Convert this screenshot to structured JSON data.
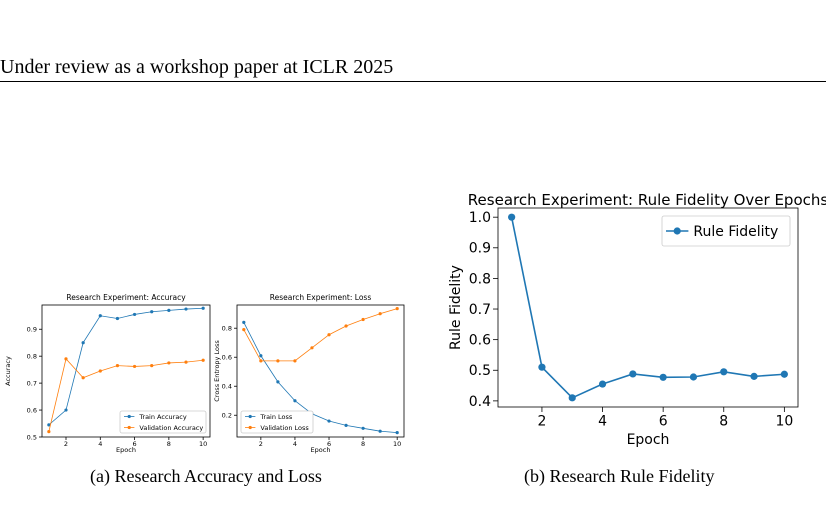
{
  "header": {
    "text": "Under review as a workshop paper at ICLR 2025"
  },
  "captions": {
    "a": "(a) Research Accuracy and Loss",
    "b": "(b) Research Rule Fidelity"
  },
  "colors": {
    "blue": "#1f77b4",
    "orange": "#ff7f0e"
  },
  "chart_data": [
    {
      "type": "line",
      "title": "Research Experiment: Accuracy",
      "xlabel": "Epoch",
      "ylabel": "Accuracy",
      "x": [
        1,
        2,
        3,
        4,
        5,
        6,
        7,
        8,
        9,
        10
      ],
      "xlim": [
        0.6,
        10.4
      ],
      "ylim": [
        0.5,
        0.99
      ],
      "xticks": [
        2,
        4,
        6,
        8,
        10
      ],
      "yticks": [
        0.5,
        0.6,
        0.7,
        0.8,
        0.9
      ],
      "legend": "bottom-right",
      "series": [
        {
          "name": "Train Accuracy",
          "color": "#1f77b4",
          "values": [
            0.545,
            0.6,
            0.85,
            0.95,
            0.94,
            0.955,
            0.965,
            0.97,
            0.975,
            0.978
          ]
        },
        {
          "name": "Validation Accuracy",
          "color": "#ff7f0e",
          "values": [
            0.52,
            0.79,
            0.72,
            0.745,
            0.765,
            0.762,
            0.765,
            0.775,
            0.778,
            0.785
          ]
        }
      ]
    },
    {
      "type": "line",
      "title": "Research Experiment: Loss",
      "xlabel": "Epoch",
      "ylabel": "Cross Entropy Loss",
      "x": [
        1,
        2,
        3,
        4,
        5,
        6,
        7,
        8,
        9,
        10
      ],
      "xlim": [
        0.6,
        10.4
      ],
      "ylim": [
        0.05,
        0.96
      ],
      "xticks": [
        2,
        4,
        6,
        8,
        10
      ],
      "yticks": [
        0.2,
        0.4,
        0.6,
        0.8
      ],
      "legend": "bottom-left",
      "series": [
        {
          "name": "Train Loss",
          "color": "#1f77b4",
          "values": [
            0.84,
            0.61,
            0.43,
            0.3,
            0.21,
            0.16,
            0.13,
            0.11,
            0.09,
            0.08
          ]
        },
        {
          "name": "Validation Loss",
          "color": "#ff7f0e",
          "values": [
            0.79,
            0.575,
            0.575,
            0.575,
            0.665,
            0.755,
            0.815,
            0.86,
            0.9,
            0.935
          ]
        }
      ]
    },
    {
      "type": "line",
      "title": "Research Experiment: Rule Fidelity Over Epochs",
      "xlabel": "Epoch",
      "ylabel": "Rule Fidelity",
      "x": [
        1,
        2,
        3,
        4,
        5,
        6,
        7,
        8,
        9,
        10
      ],
      "xlim": [
        0.55,
        10.45
      ],
      "ylim": [
        0.38,
        1.03
      ],
      "xticks": [
        2,
        4,
        6,
        8,
        10
      ],
      "yticks": [
        0.4,
        0.5,
        0.6,
        0.7,
        0.8,
        0.9,
        1.0
      ],
      "legend": "top-right",
      "series": [
        {
          "name": "Rule Fidelity",
          "color": "#1f77b4",
          "values": [
            1.0,
            0.51,
            0.41,
            0.455,
            0.488,
            0.477,
            0.478,
            0.495,
            0.48,
            0.487
          ]
        }
      ]
    }
  ]
}
